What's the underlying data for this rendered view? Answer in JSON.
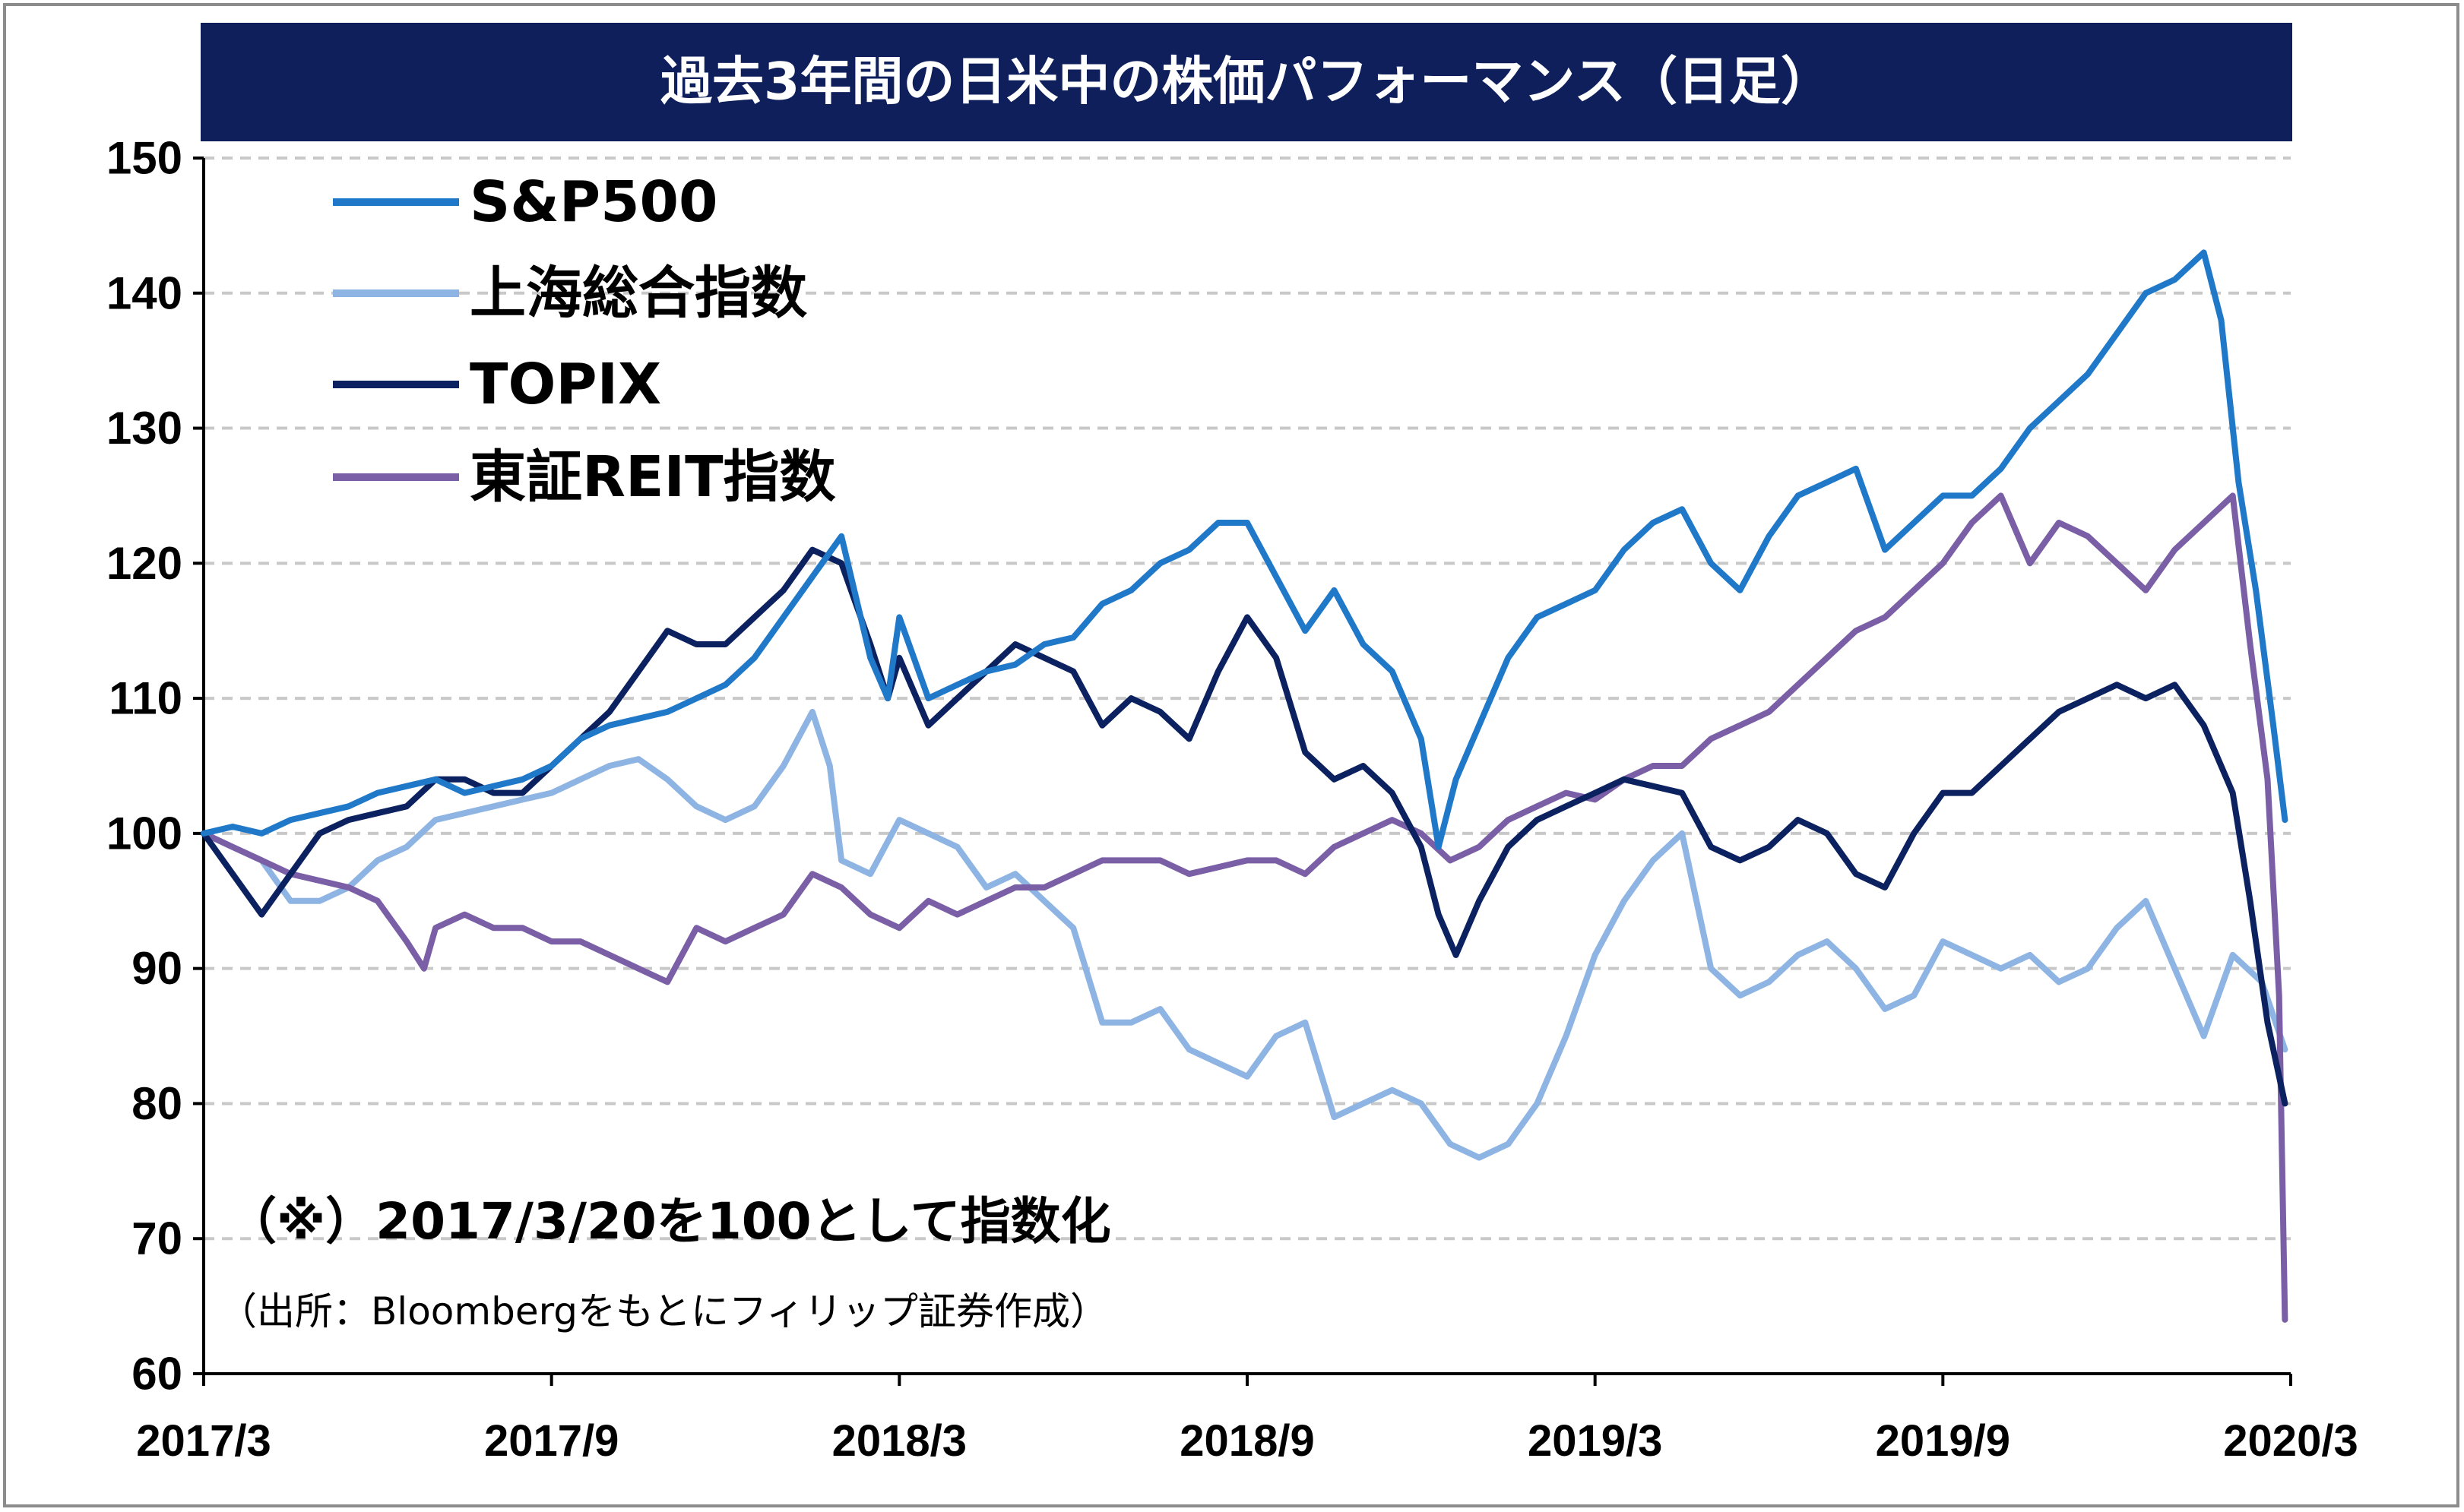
{
  "chart_data": {
    "type": "line",
    "title": "過去3年間の日米中の株価パフォーマンス（日足）",
    "note": "（※）2017/3/20を100として指数化",
    "source": "（出所：Bloombergをもとにフィリップ証券作成）",
    "xlabel": "",
    "ylabel": "",
    "x_ticks": [
      "2017/3",
      "2017/9",
      "2018/3",
      "2018/9",
      "2019/3",
      "2019/9",
      "2020/3"
    ],
    "ylim": [
      60,
      150
    ],
    "y_ticks": [
      150,
      140,
      130,
      120,
      110,
      100,
      90,
      80,
      70,
      60
    ],
    "grid": "horizontal",
    "legend_position": "top-left",
    "x_range_months": [
      0,
      36
    ],
    "series": [
      {
        "name": "S&P500",
        "color": "#1f78c8",
        "points": [
          [
            0,
            100
          ],
          [
            0.5,
            100.5
          ],
          [
            1,
            100
          ],
          [
            1.5,
            101
          ],
          [
            2,
            101.5
          ],
          [
            2.5,
            102
          ],
          [
            3,
            103
          ],
          [
            3.5,
            103.5
          ],
          [
            4,
            104
          ],
          [
            4.5,
            103
          ],
          [
            5,
            103.5
          ],
          [
            5.5,
            104
          ],
          [
            6,
            105
          ],
          [
            6.5,
            107
          ],
          [
            7,
            108
          ],
          [
            7.5,
            108.5
          ],
          [
            8,
            109
          ],
          [
            8.5,
            110
          ],
          [
            9,
            111
          ],
          [
            9.5,
            113
          ],
          [
            10,
            116
          ],
          [
            10.5,
            119
          ],
          [
            11,
            122
          ],
          [
            11.5,
            113
          ],
          [
            11.8,
            110
          ],
          [
            12,
            116
          ],
          [
            12.5,
            110
          ],
          [
            13,
            111
          ],
          [
            13.5,
            112
          ],
          [
            14,
            112.5
          ],
          [
            14.5,
            114
          ],
          [
            15,
            114.5
          ],
          [
            15.5,
            117
          ],
          [
            16,
            118
          ],
          [
            16.5,
            120
          ],
          [
            17,
            121
          ],
          [
            17.5,
            123
          ],
          [
            18,
            123
          ],
          [
            18.5,
            119
          ],
          [
            19,
            115
          ],
          [
            19.5,
            118
          ],
          [
            20,
            114
          ],
          [
            20.5,
            112
          ],
          [
            21,
            107
          ],
          [
            21.3,
            99
          ],
          [
            21.6,
            104
          ],
          [
            22,
            108
          ],
          [
            22.5,
            113
          ],
          [
            23,
            116
          ],
          [
            23.5,
            117
          ],
          [
            24,
            118
          ],
          [
            24.5,
            121
          ],
          [
            25,
            123
          ],
          [
            25.5,
            124
          ],
          [
            26,
            120
          ],
          [
            26.5,
            118
          ],
          [
            27,
            122
          ],
          [
            27.5,
            125
          ],
          [
            28,
            126
          ],
          [
            28.5,
            127
          ],
          [
            29,
            121
          ],
          [
            29.5,
            123
          ],
          [
            30,
            125
          ],
          [
            30.5,
            125
          ],
          [
            31,
            127
          ],
          [
            31.5,
            130
          ],
          [
            32,
            132
          ],
          [
            32.5,
            134
          ],
          [
            33,
            137
          ],
          [
            33.5,
            140
          ],
          [
            34,
            141
          ],
          [
            34.5,
            143
          ],
          [
            34.8,
            138
          ],
          [
            35.1,
            126
          ],
          [
            35.4,
            118
          ],
          [
            35.7,
            108
          ],
          [
            35.9,
            101
          ]
        ]
      },
      {
        "name": "上海総合指数",
        "color": "#8db4e2",
        "points": [
          [
            0,
            100
          ],
          [
            0.5,
            99
          ],
          [
            1,
            98
          ],
          [
            1.5,
            95
          ],
          [
            2,
            95
          ],
          [
            2.5,
            96
          ],
          [
            3,
            98
          ],
          [
            3.5,
            99
          ],
          [
            4,
            101
          ],
          [
            4.5,
            101.5
          ],
          [
            5,
            102
          ],
          [
            5.5,
            102.5
          ],
          [
            6,
            103
          ],
          [
            6.5,
            104
          ],
          [
            7,
            105
          ],
          [
            7.5,
            105.5
          ],
          [
            8,
            104
          ],
          [
            8.5,
            102
          ],
          [
            9,
            101
          ],
          [
            9.5,
            102
          ],
          [
            10,
            105
          ],
          [
            10.5,
            109
          ],
          [
            10.8,
            105
          ],
          [
            11,
            98
          ],
          [
            11.5,
            97
          ],
          [
            12,
            101
          ],
          [
            12.5,
            100
          ],
          [
            13,
            99
          ],
          [
            13.5,
            96
          ],
          [
            14,
            97
          ],
          [
            14.5,
            95
          ],
          [
            15,
            93
          ],
          [
            15.5,
            86
          ],
          [
            16,
            86
          ],
          [
            16.5,
            87
          ],
          [
            17,
            84
          ],
          [
            17.5,
            83
          ],
          [
            18,
            82
          ],
          [
            18.5,
            85
          ],
          [
            19,
            86
          ],
          [
            19.5,
            79
          ],
          [
            20,
            80
          ],
          [
            20.5,
            81
          ],
          [
            21,
            80
          ],
          [
            21.5,
            77
          ],
          [
            22,
            76
          ],
          [
            22.5,
            77
          ],
          [
            23,
            80
          ],
          [
            23.5,
            85
          ],
          [
            24,
            91
          ],
          [
            24.5,
            95
          ],
          [
            25,
            98
          ],
          [
            25.5,
            100
          ],
          [
            26,
            90
          ],
          [
            26.5,
            88
          ],
          [
            27,
            89
          ],
          [
            27.5,
            91
          ],
          [
            28,
            92
          ],
          [
            28.5,
            90
          ],
          [
            29,
            87
          ],
          [
            29.5,
            88
          ],
          [
            30,
            92
          ],
          [
            30.5,
            91
          ],
          [
            31,
            90
          ],
          [
            31.5,
            91
          ],
          [
            32,
            89
          ],
          [
            32.5,
            90
          ],
          [
            33,
            93
          ],
          [
            33.5,
            95
          ],
          [
            34,
            90
          ],
          [
            34.5,
            85
          ],
          [
            35,
            91
          ],
          [
            35.5,
            89
          ],
          [
            35.9,
            84
          ]
        ]
      },
      {
        "name": "TOPIX",
        "color": "#0c2260",
        "points": [
          [
            0,
            100
          ],
          [
            0.5,
            97
          ],
          [
            1,
            94
          ],
          [
            1.5,
            97
          ],
          [
            2,
            100
          ],
          [
            2.5,
            101
          ],
          [
            3,
            101.5
          ],
          [
            3.5,
            102
          ],
          [
            4,
            104
          ],
          [
            4.5,
            104
          ],
          [
            5,
            103
          ],
          [
            5.5,
            103
          ],
          [
            6,
            105
          ],
          [
            6.5,
            107
          ],
          [
            7,
            109
          ],
          [
            7.5,
            112
          ],
          [
            8,
            115
          ],
          [
            8.5,
            114
          ],
          [
            9,
            114
          ],
          [
            9.5,
            116
          ],
          [
            10,
            118
          ],
          [
            10.5,
            121
          ],
          [
            11,
            120
          ],
          [
            11.5,
            114
          ],
          [
            11.8,
            110
          ],
          [
            12,
            113
          ],
          [
            12.5,
            108
          ],
          [
            13,
            110
          ],
          [
            13.5,
            112
          ],
          [
            14,
            114
          ],
          [
            14.5,
            113
          ],
          [
            15,
            112
          ],
          [
            15.5,
            108
          ],
          [
            16,
            110
          ],
          [
            16.5,
            109
          ],
          [
            17,
            107
          ],
          [
            17.5,
            112
          ],
          [
            18,
            116
          ],
          [
            18.5,
            113
          ],
          [
            19,
            106
          ],
          [
            19.5,
            104
          ],
          [
            20,
            105
          ],
          [
            20.5,
            103
          ],
          [
            21,
            99
          ],
          [
            21.3,
            94
          ],
          [
            21.6,
            91
          ],
          [
            22,
            95
          ],
          [
            22.5,
            99
          ],
          [
            23,
            101
          ],
          [
            23.5,
            102
          ],
          [
            24,
            103
          ],
          [
            24.5,
            104
          ],
          [
            25,
            103.5
          ],
          [
            25.5,
            103
          ],
          [
            26,
            99
          ],
          [
            26.5,
            98
          ],
          [
            27,
            99
          ],
          [
            27.5,
            101
          ],
          [
            28,
            100
          ],
          [
            28.5,
            97
          ],
          [
            29,
            96
          ],
          [
            29.5,
            100
          ],
          [
            30,
            103
          ],
          [
            30.5,
            103
          ],
          [
            31,
            105
          ],
          [
            31.5,
            107
          ],
          [
            32,
            109
          ],
          [
            32.5,
            110
          ],
          [
            33,
            111
          ],
          [
            33.5,
            110
          ],
          [
            34,
            111
          ],
          [
            34.5,
            108
          ],
          [
            35,
            103
          ],
          [
            35.3,
            95
          ],
          [
            35.6,
            86
          ],
          [
            35.9,
            80
          ]
        ]
      },
      {
        "name": "東証REIT指数",
        "color": "#7a5fa6",
        "points": [
          [
            0,
            100
          ],
          [
            0.5,
            99
          ],
          [
            1,
            98
          ],
          [
            1.5,
            97
          ],
          [
            2,
            96.5
          ],
          [
            2.5,
            96
          ],
          [
            3,
            95
          ],
          [
            3.5,
            92
          ],
          [
            3.8,
            90
          ],
          [
            4,
            93
          ],
          [
            4.5,
            94
          ],
          [
            5,
            93
          ],
          [
            5.5,
            93
          ],
          [
            6,
            92
          ],
          [
            6.5,
            92
          ],
          [
            7,
            91
          ],
          [
            7.5,
            90
          ],
          [
            8,
            89
          ],
          [
            8.5,
            93
          ],
          [
            9,
            92
          ],
          [
            9.5,
            93
          ],
          [
            10,
            94
          ],
          [
            10.5,
            97
          ],
          [
            11,
            96
          ],
          [
            11.5,
            94
          ],
          [
            12,
            93
          ],
          [
            12.5,
            95
          ],
          [
            13,
            94
          ],
          [
            13.5,
            95
          ],
          [
            14,
            96
          ],
          [
            14.5,
            96
          ],
          [
            15,
            97
          ],
          [
            15.5,
            98
          ],
          [
            16,
            98
          ],
          [
            16.5,
            98
          ],
          [
            17,
            97
          ],
          [
            17.5,
            97.5
          ],
          [
            18,
            98
          ],
          [
            18.5,
            98
          ],
          [
            19,
            97
          ],
          [
            19.5,
            99
          ],
          [
            20,
            100
          ],
          [
            20.5,
            101
          ],
          [
            21,
            100
          ],
          [
            21.5,
            98
          ],
          [
            22,
            99
          ],
          [
            22.5,
            101
          ],
          [
            23,
            102
          ],
          [
            23.5,
            103
          ],
          [
            24,
            102.5
          ],
          [
            24.5,
            104
          ],
          [
            25,
            105
          ],
          [
            25.5,
            105
          ],
          [
            26,
            107
          ],
          [
            26.5,
            108
          ],
          [
            27,
            109
          ],
          [
            27.5,
            111
          ],
          [
            28,
            113
          ],
          [
            28.5,
            115
          ],
          [
            29,
            116
          ],
          [
            29.5,
            118
          ],
          [
            30,
            120
          ],
          [
            30.5,
            123
          ],
          [
            31,
            125
          ],
          [
            31.5,
            120
          ],
          [
            32,
            123
          ],
          [
            32.5,
            122
          ],
          [
            33,
            120
          ],
          [
            33.5,
            118
          ],
          [
            34,
            121
          ],
          [
            34.5,
            123
          ],
          [
            35,
            125
          ],
          [
            35.3,
            114
          ],
          [
            35.6,
            104
          ],
          [
            35.8,
            88
          ],
          [
            35.9,
            64
          ]
        ]
      }
    ]
  }
}
